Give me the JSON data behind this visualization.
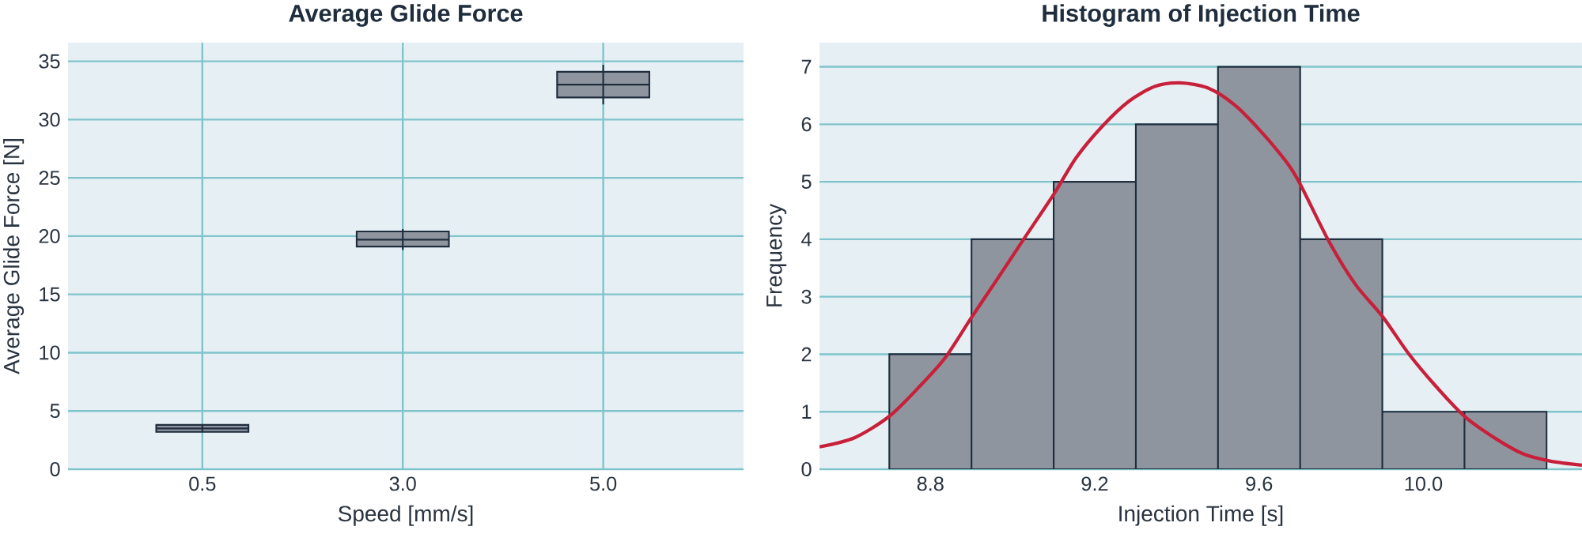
{
  "chart_data": [
    {
      "type": "box",
      "title": "Average Glide Force",
      "xlabel": "Speed [mm/s]",
      "ylabel": "Average Glide Force [N]",
      "categories": [
        "0.5",
        "3.0",
        "5.0"
      ],
      "color": "#8e959f",
      "boxes": [
        {
          "low": 3.2,
          "q1": 3.2,
          "median": 3.5,
          "q3": 3.8,
          "high": 3.8
        },
        {
          "low": 18.8,
          "q1": 19.1,
          "median": 19.7,
          "q3": 20.4,
          "high": 20.6
        },
        {
          "low": 31.3,
          "q1": 31.9,
          "median": 33.0,
          "q3": 34.1,
          "high": 34.7
        }
      ],
      "ylim": [
        0,
        36.6
      ],
      "yticks": [
        0,
        5,
        10,
        15,
        20,
        25,
        30,
        35
      ],
      "grid": true
    },
    {
      "type": "histogram",
      "title": "Histogram of Injection Time",
      "xlabel": "Injection Time [s]",
      "ylabel": "Frequency",
      "color": "#8e959f",
      "bins": [
        8.7,
        8.9,
        9.1,
        9.3,
        9.5,
        9.7,
        9.9,
        10.1,
        10.3
      ],
      "values": [
        2,
        4,
        5,
        6,
        7,
        4,
        1,
        1
      ],
      "series": [
        {
          "type": "line",
          "color": "#c8203a",
          "x": [
            8.53,
            8.616,
            8.7,
            8.771,
            8.835,
            8.9,
            8.963,
            9.027,
            9.1,
            9.155,
            9.219,
            9.283,
            9.347,
            9.408,
            9.476,
            9.54,
            9.604,
            9.668,
            9.7,
            9.771,
            9.835,
            9.9,
            9.963,
            10.027,
            10.1,
            10.181,
            10.245,
            10.31,
            10.386
          ],
          "values": [
            0.39,
            0.55,
            0.92,
            1.42,
            1.93,
            2.64,
            3.31,
            4.0,
            4.78,
            5.42,
            5.97,
            6.4,
            6.66,
            6.72,
            6.63,
            6.34,
            5.88,
            5.33,
            4.96,
            3.95,
            3.21,
            2.66,
            2.02,
            1.47,
            0.92,
            0.51,
            0.26,
            0.14,
            0.07
          ]
        }
      ],
      "xlim": [
        8.53,
        10.386
      ],
      "ylim": [
        0,
        7.42
      ],
      "xticks": [
        8.8,
        9.2,
        9.6,
        {
          "value": 10.0,
          "label": "10.0"
        }
      ],
      "yticks": [
        0,
        1,
        2,
        3,
        4,
        5,
        6,
        7
      ],
      "grid": "y"
    }
  ]
}
